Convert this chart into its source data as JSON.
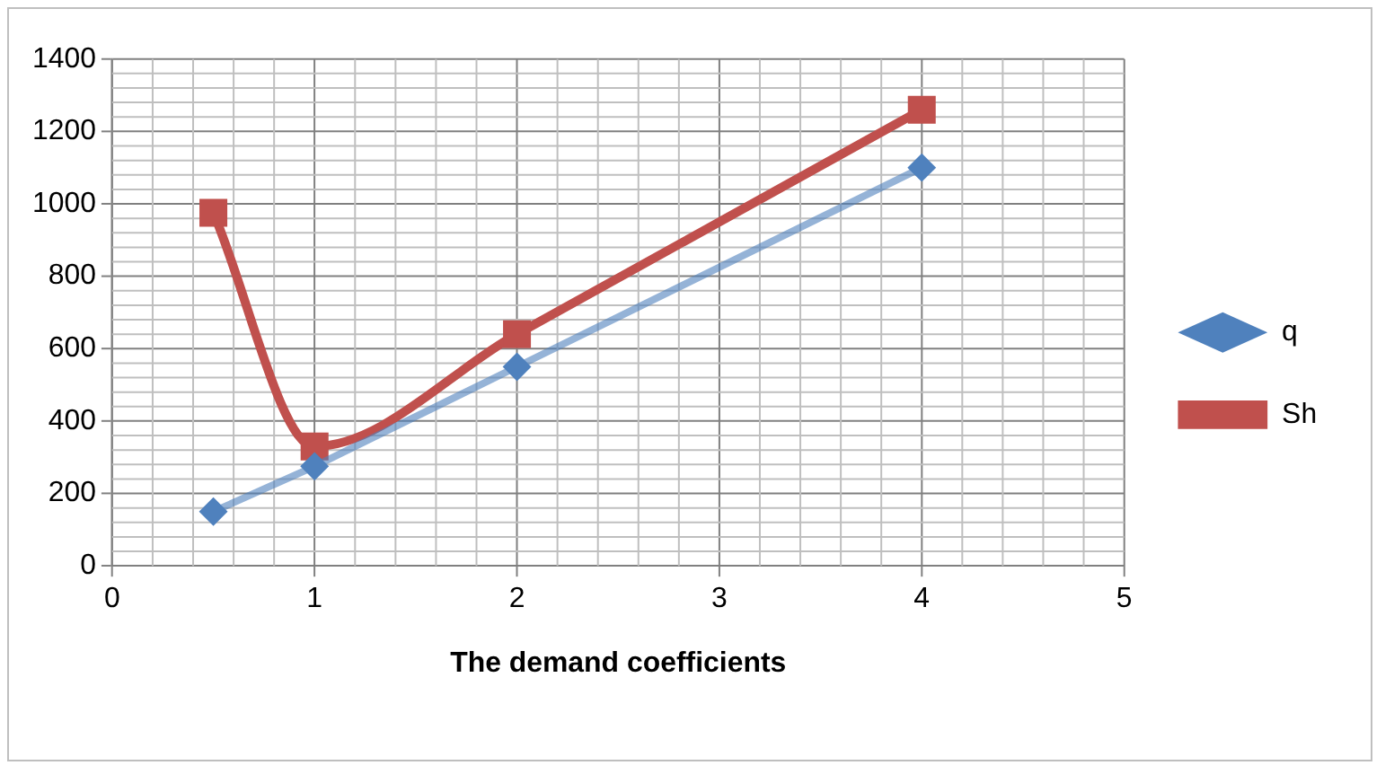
{
  "chart_data": {
    "type": "line",
    "xlabel": "The demand coefficients",
    "x": [
      0.5,
      1,
      2,
      4
    ],
    "series": [
      {
        "name": "q",
        "color": "#4f81bd",
        "marker": "diamond",
        "values": [
          150,
          275,
          550,
          1100
        ]
      },
      {
        "name": "Sh",
        "color": "#c0504d",
        "marker": "square",
        "values": [
          975,
          330,
          640,
          1260
        ]
      }
    ],
    "xlim": [
      0,
      5
    ],
    "xticks": [
      0,
      1,
      2,
      3,
      4,
      5
    ],
    "ylim": [
      0,
      1400
    ],
    "yticks": [
      0,
      200,
      400,
      600,
      800,
      1000,
      1200,
      1400
    ],
    "grid": true,
    "legend": "right",
    "line_style": "solid"
  }
}
